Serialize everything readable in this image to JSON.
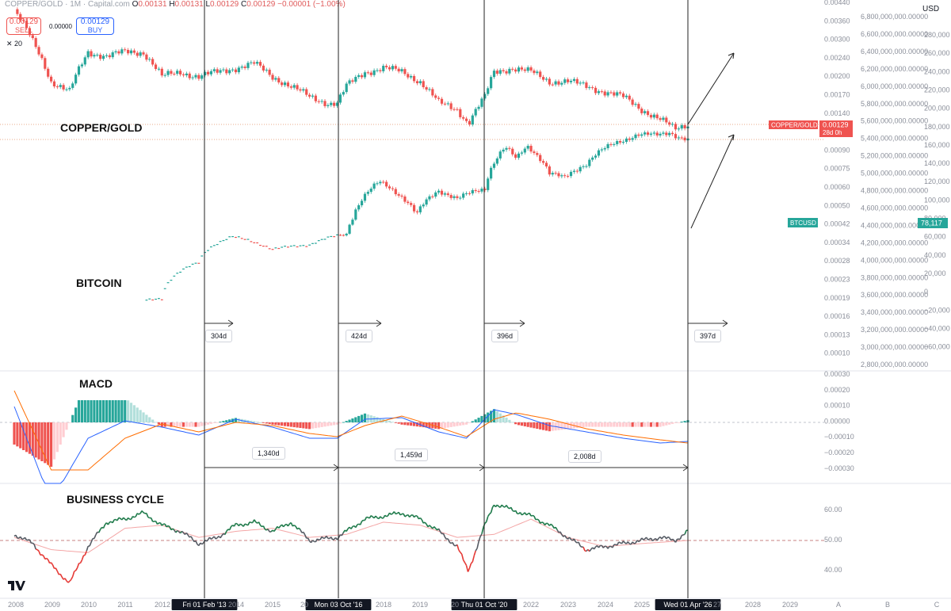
{
  "header": {
    "symbol": "COPPER/GOLD · 1M · Capital.com",
    "o_label": "O",
    "o_value": "0.00131",
    "h_label": "H",
    "h_value": "0.00131",
    "l_label": "L",
    "l_value": "0.00129",
    "c_label": "C",
    "c_value": "0.00129",
    "change": "−0.00001 (−1.00%)"
  },
  "trade": {
    "sell_price": "0.00129",
    "sell_label": "SELL",
    "spread": "0.00000",
    "buy_price": "0.00129",
    "buy_label": "BUY",
    "qty": "20"
  },
  "currency": "USD",
  "panels": {
    "copper_gold": "COPPER/GOLD",
    "bitcoin": "BITCOIN",
    "macd": "MACD",
    "business_cycle": "BUSINESS CYCLE"
  },
  "price_labels": {
    "copper_gold_tag": "COPPER/GOLD",
    "copper_gold_value": "0.00129",
    "copper_gold_countdown": "28d 0h",
    "btc_tag": "BTCUSD",
    "btc_value": "78,117"
  },
  "scales": {
    "copper_gold_ticks": [
      "0.00440",
      "0.00360",
      "0.00300",
      "0.00240",
      "0.00200",
      "0.00170",
      "0.00140",
      "0.00110",
      "0.00090",
      "0.00075",
      "0.00060",
      "0.00050",
      "0.00042",
      "0.00034",
      "0.00028",
      "0.00023",
      "0.00019",
      "0.00016",
      "0.00013",
      "0.00010"
    ],
    "big_ticks": [
      "6,800,000,000.00000",
      "6,600,000,000.00000",
      "6,400,000,000.00000",
      "6,200,000,000.00000",
      "6,000,000,000.00000",
      "5,800,000,000.00000",
      "5,600,000,000.00000",
      "5,400,000,000.00000",
      "5,200,000,000.00000",
      "5,000,000,000.00000",
      "4,800,000,000.00000",
      "4,600,000,000.00000",
      "4,400,000,000.00000",
      "4,200,000,000.00000",
      "4,000,000,000.00000",
      "3,800,000,000.00000",
      "3,600,000,000.00000",
      "3,400,000,000.00000",
      "3,200,000,000.00000",
      "3,000,000,000.00000",
      "2,800,000,000.00000"
    ],
    "btc_ticks": [
      "280,000",
      "260,000",
      "240,000",
      "220,000",
      "200,000",
      "180,000",
      "160,000",
      "140,000",
      "120,000",
      "100,000",
      "80,000",
      "60,000",
      "40,000",
      "20,000",
      "0",
      "−20,000",
      "−40,000",
      "−60,000"
    ],
    "macd_ticks": [
      "0.00030",
      "0.00020",
      "0.00010",
      "0.00000",
      "−0.00010",
      "−0.00020",
      "−0.00030"
    ],
    "cycle_ticks": [
      "60.00",
      "50.00",
      "40.00"
    ]
  },
  "x_axis": {
    "years": [
      "2008",
      "2009",
      "2010",
      "2011",
      "2012",
      "2014",
      "2015",
      "20",
      "2018",
      "2019",
      "20",
      "2022",
      "2023",
      "2024",
      "2025",
      "27",
      "2028",
      "2029"
    ],
    "scale_letters": [
      "A",
      "B",
      "C"
    ],
    "date_badges": [
      "Fri 01 Feb '13",
      "Mon 03 Oct '16",
      "Thu 01 Oct '20",
      "Wed 01 Apr '26"
    ]
  },
  "annotations": {
    "halving_spans": [
      "304d",
      "424d",
      "396d",
      "397d"
    ],
    "macd_spans": [
      "1,340d",
      "1,459d",
      "2,008d"
    ]
  },
  "colors": {
    "up": "#26a69a",
    "down": "#ef5350",
    "macd_line": "#2962ff",
    "signal_line": "#ff6d00",
    "cycle_up": "#1e7a4a",
    "cycle_down": "#e53935",
    "cycle_signal": "#f4a6a6",
    "grid": "#e0e3eb"
  },
  "chart_data": [
    {
      "type": "line",
      "title": "COPPER/GOLD",
      "note": "monthly candles approximated as closes",
      "x": [
        2008.0,
        2008.5,
        2009.0,
        2009.5,
        2010.0,
        2010.5,
        2011.0,
        2011.5,
        2012.0,
        2012.5,
        2013.0,
        2013.5,
        2014.0,
        2014.5,
        2015.0,
        2015.5,
        2016.0,
        2016.5,
        2016.75,
        2017.0,
        2017.5,
        2018.0,
        2018.5,
        2019.0,
        2019.5,
        2020.0,
        2020.3,
        2020.75,
        2021.0,
        2021.5,
        2022.0,
        2022.5,
        2023.0,
        2023.5,
        2024.0,
        2024.5,
        2025.0,
        2025.5,
        2025.9,
        2026.25
      ],
      "values": [
        0.0042,
        0.003,
        0.002,
        0.0018,
        0.0027,
        0.0026,
        0.0027,
        0.0027,
        0.0021,
        0.0022,
        0.0021,
        0.0022,
        0.0023,
        0.0024,
        0.0021,
        0.0019,
        0.0017,
        0.0016,
        0.0016,
        0.0019,
        0.0022,
        0.0023,
        0.0022,
        0.002,
        0.0016,
        0.0015,
        0.0013,
        0.0017,
        0.0022,
        0.0023,
        0.0022,
        0.002,
        0.002,
        0.0019,
        0.0018,
        0.0017,
        0.0015,
        0.00135,
        0.00122,
        0.00129
      ]
    },
    {
      "type": "line",
      "title": "BITCOIN",
      "ylabel": "BTCUSD",
      "x": [
        2011.5,
        2012.0,
        2013.0,
        2013.9,
        2015.0,
        2016.0,
        2017.0,
        2017.9,
        2018.9,
        2019.5,
        2020.0,
        2020.75,
        2021.3,
        2021.6,
        2021.9,
        2022.5,
        2022.9,
        2023.5,
        2024.2,
        2024.9,
        2025.4,
        2025.75,
        2026.0,
        2026.25
      ],
      "values": [
        5,
        6,
        100,
        800,
        300,
        430,
        1000,
        14000,
        3700,
        10000,
        7200,
        10800,
        58000,
        35000,
        61000,
        20000,
        16500,
        30000,
        65000,
        97000,
        95000,
        108000,
        88000,
        78117
      ]
    },
    {
      "type": "line",
      "title": "MACD",
      "series": [
        {
          "name": "MACD",
          "x": [
            2008.0,
            2009.0,
            2010.0,
            2011.0,
            2012.0,
            2013.0,
            2014.0,
            2015.0,
            2016.0,
            2016.75,
            2017.5,
            2018.5,
            2019.5,
            2020.25,
            2021.0,
            2021.6,
            2022.5,
            2023.5,
            2024.5,
            2025.5,
            2026.25
          ],
          "values": [
            0.0001,
            -0.0005,
            -0.0001,
            1e-05,
            -3e-05,
            -8e-05,
            2e-05,
            -3e-05,
            -0.0001,
            -0.0001,
            2e-05,
            3e-05,
            -6e-05,
            -0.0001,
            8e-05,
            5e-05,
            -2e-05,
            -6e-05,
            -0.0001,
            -0.00013,
            -0.00012
          ]
        },
        {
          "name": "Signal",
          "x": [
            2008.0,
            2009.0,
            2010.0,
            2011.0,
            2012.0,
            2013.0,
            2014.0,
            2015.0,
            2016.0,
            2016.75,
            2017.5,
            2018.5,
            2019.5,
            2020.25,
            2021.0,
            2021.6,
            2022.5,
            2023.5,
            2024.5,
            2025.5,
            2026.25
          ],
          "values": [
            0.0002,
            -0.0003,
            -0.0003,
            -0.0001,
            -1e-05,
            -6e-05,
            0.0,
            -2e-05,
            -7e-05,
            -9e-05,
            -2e-05,
            4e-05,
            -3e-05,
            -9e-05,
            2e-05,
            6e-05,
            2e-05,
            -4e-05,
            -8e-05,
            -0.00011,
            -0.00013
          ]
        }
      ]
    },
    {
      "type": "line",
      "title": "BUSINESS CYCLE",
      "ylim": [
        35,
        65
      ],
      "series": [
        {
          "name": "Cycle",
          "x": [
            2008.0,
            2008.5,
            2009.0,
            2009.5,
            2010.0,
            2010.5,
            2011.0,
            2011.5,
            2012.0,
            2012.5,
            2013.0,
            2013.5,
            2014.0,
            2014.5,
            2015.0,
            2015.5,
            2016.0,
            2016.75,
            2017.5,
            2018.0,
            2018.5,
            2019.0,
            2019.5,
            2020.0,
            2020.3,
            2020.75,
            2021.0,
            2021.5,
            2022.0,
            2022.5,
            2023.0,
            2023.5,
            2024.0,
            2024.5,
            2025.0,
            2025.5,
            2025.9,
            2026.25
          ],
          "values": [
            52,
            49,
            42,
            36,
            48,
            56,
            57,
            59,
            55,
            53,
            49,
            51,
            55,
            56,
            53,
            56,
            50,
            51,
            57,
            58,
            59,
            57,
            53,
            48,
            40,
            55,
            62,
            60,
            58,
            55,
            51,
            47,
            48,
            49,
            50,
            51,
            50,
            53
          ]
        },
        {
          "name": "Signal",
          "x": [
            2008.0,
            2009.0,
            2010.0,
            2011.0,
            2012.0,
            2013.0,
            2014.0,
            2015.0,
            2016.0,
            2017.0,
            2018.0,
            2019.0,
            2020.0,
            2021.0,
            2022.0,
            2023.0,
            2024.0,
            2025.0,
            2026.25
          ],
          "values": [
            51,
            47,
            46,
            54,
            55,
            51,
            53,
            54,
            51,
            52,
            56,
            55,
            51,
            52,
            57,
            51,
            48,
            49,
            50
          ]
        }
      ]
    }
  ]
}
